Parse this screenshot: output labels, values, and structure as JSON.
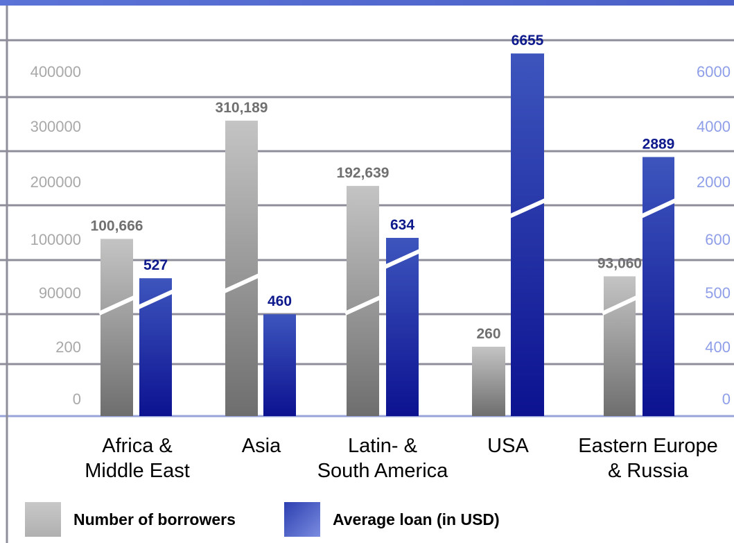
{
  "chart_data": {
    "type": "bar",
    "categories": [
      [
        "Africa &",
        "Middle East"
      ],
      [
        "Asia"
      ],
      [
        "Latin- &",
        "South America"
      ],
      [
        "USA"
      ],
      [
        "Eastern Europe",
        "& Russia"
      ]
    ],
    "series": [
      {
        "name": "Number of borrowers",
        "values": [
          100666,
          310189,
          192639,
          260,
          93060
        ],
        "labels": [
          "100,666",
          "310,189",
          "192,639",
          "260",
          "93,060"
        ],
        "label_color": "#707070",
        "color_top": "#c4c4c4",
        "color_bottom": "#6e6e6e",
        "axis": "left"
      },
      {
        "name": "Average loan (in USD)",
        "values": [
          527,
          460,
          634,
          6655,
          2889
        ],
        "labels": [
          "527",
          "460",
          "634",
          "6655",
          "2889"
        ],
        "label_color": "#0e1a8c",
        "color_top": "#3d55bd",
        "color_bottom": "#0c1290",
        "axis": "right"
      }
    ],
    "left_axis_ticks": [
      "0",
      "200",
      "90000",
      "100000",
      "200000",
      "300000",
      "400000"
    ],
    "right_axis_ticks": [
      "0",
      "400",
      "500",
      "600",
      "2000",
      "4000",
      "6000"
    ],
    "axis_breaks": true,
    "grid": true,
    "legend_position": "bottom"
  }
}
